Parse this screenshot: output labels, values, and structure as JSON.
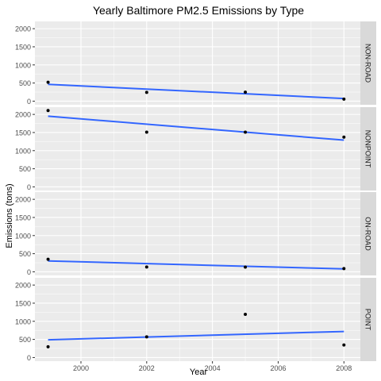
{
  "chart_data": {
    "type": "scatter",
    "title": "Yearly Baltimore PM2.5 Emissions by Type",
    "xlabel": "Year",
    "ylabel": "Emissions (tons)",
    "xlim": [
      1998.6,
      2008.5
    ],
    "ylim": [
      -100,
      2200
    ],
    "x_ticks": [
      2000,
      2002,
      2004,
      2006,
      2008
    ],
    "y_ticks": [
      0,
      500,
      1000,
      1500,
      2000
    ],
    "grid": true,
    "smoother": "linear trend line",
    "colors": {
      "panel_bg": "#ebebeb",
      "grid": "#ffffff",
      "strip_bg": "#d9d9d9",
      "point": "#000000",
      "trend": "#3366ff",
      "text": "#1a1a1a",
      "tick_text": "#4d4d4d"
    },
    "panels": [
      {
        "label": "NON-ROAD",
        "points": [
          {
            "x": 1999,
            "y": 522
          },
          {
            "x": 2002,
            "y": 241
          },
          {
            "x": 2005,
            "y": 249
          },
          {
            "x": 2008,
            "y": 55
          }
        ],
        "trend": [
          {
            "x": 1999,
            "y": 463
          },
          {
            "x": 2008,
            "y": 73
          }
        ]
      },
      {
        "label": "NONPOINT",
        "points": [
          {
            "x": 1999,
            "y": 2108
          },
          {
            "x": 2002,
            "y": 1510
          },
          {
            "x": 2005,
            "y": 1510
          },
          {
            "x": 2008,
            "y": 1373
          }
        ],
        "trend": [
          {
            "x": 1999,
            "y": 1950
          },
          {
            "x": 2008,
            "y": 1290
          }
        ]
      },
      {
        "label": "ON-ROAD",
        "points": [
          {
            "x": 1999,
            "y": 347
          },
          {
            "x": 2002,
            "y": 134
          },
          {
            "x": 2005,
            "y": 130
          },
          {
            "x": 2008,
            "y": 88
          }
        ],
        "trend": [
          {
            "x": 1999,
            "y": 300
          },
          {
            "x": 2008,
            "y": 80
          }
        ]
      },
      {
        "label": "POINT",
        "points": [
          {
            "x": 1999,
            "y": 296
          },
          {
            "x": 2002,
            "y": 570
          },
          {
            "x": 2005,
            "y": 1193
          },
          {
            "x": 2008,
            "y": 345
          }
        ],
        "trend": [
          {
            "x": 1999,
            "y": 490
          },
          {
            "x": 2008,
            "y": 720
          }
        ]
      }
    ]
  }
}
